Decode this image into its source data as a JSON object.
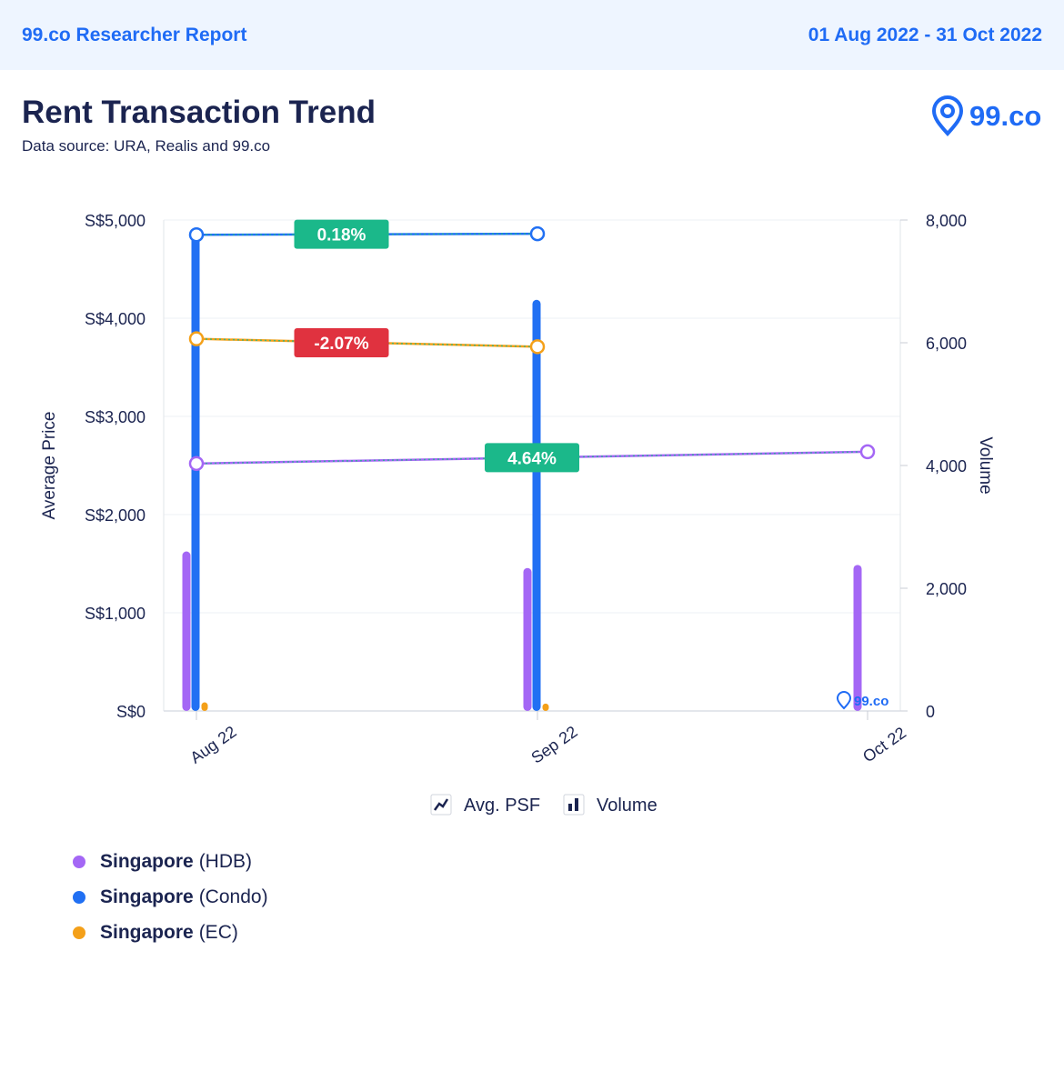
{
  "header": {
    "report_title": "99.co Researcher Report",
    "date_range": "01 Aug 2022 - 31 Oct 2022"
  },
  "page": {
    "title": "Rent Transaction Trend",
    "data_source": "Data source: URA, Realis and 99.co",
    "logo_text": "99.co"
  },
  "colors": {
    "hdb": "#a467f5",
    "condo": "#2170f3",
    "ec": "#f4a019",
    "positive_badge": "#1bb88a",
    "negative_badge": "#e0323f",
    "axis_text": "#1b2450",
    "accent": "#1f6bf5"
  },
  "chart_data": {
    "type": "bar-line-combo",
    "categories": [
      "Aug 22",
      "Sep 22",
      "Oct 22"
    ],
    "ylabel": "Average Price",
    "y2label": "Volume",
    "ylim": [
      0,
      5000
    ],
    "y2lim": [
      0,
      8000
    ],
    "yticks": [
      "S$0",
      "S$1,000",
      "S$2,000",
      "S$3,000",
      "S$4,000",
      "S$5,000"
    ],
    "y2ticks": [
      "0",
      "2,000",
      "4,000",
      "6,000",
      "8,000"
    ],
    "grid": true,
    "legend_position": "bottom",
    "legend_toggles": [
      {
        "label": "Avg. PSF",
        "icon": "line-chart-icon"
      },
      {
        "label": "Volume",
        "icon": "bar-chart-icon"
      }
    ],
    "series": [
      {
        "name": "Singapore (HDB)",
        "color_key": "hdb",
        "volume": [
          2600,
          2330,
          2380
        ],
        "price": [
          2520,
          null,
          2640
        ]
      },
      {
        "name": "Singapore (Condo)",
        "color_key": "condo",
        "volume": [
          7750,
          6700,
          null
        ],
        "price": [
          4850,
          4860,
          null
        ]
      },
      {
        "name": "Singapore (EC)",
        "color_key": "ec",
        "volume": [
          140,
          120,
          null
        ],
        "price": [
          3790,
          3710,
          null
        ]
      }
    ],
    "badges": [
      {
        "text": "0.18%",
        "kind": "positive",
        "cat": 0.5,
        "price": 4855
      },
      {
        "text": "-2.07%",
        "kind": "negative",
        "cat": 0.5,
        "price": 3750
      },
      {
        "text": "4.64%",
        "kind": "positive",
        "cat": 1.0,
        "price": 2580
      }
    ],
    "watermark": "99.co"
  },
  "legend": [
    {
      "region": "Singapore",
      "type": "(HDB)",
      "color_key": "hdb"
    },
    {
      "region": "Singapore",
      "type": "(Condo)",
      "color_key": "condo"
    },
    {
      "region": "Singapore",
      "type": "(EC)",
      "color_key": "ec"
    }
  ]
}
